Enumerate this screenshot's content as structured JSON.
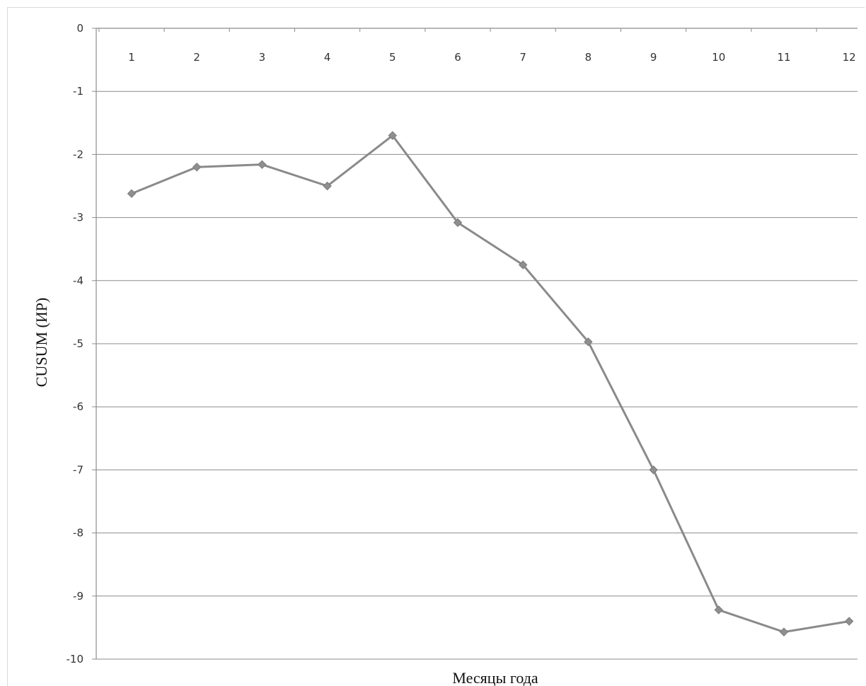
{
  "chart_data": {
    "type": "line",
    "title": "",
    "xlabel": "Месяцы года",
    "ylabel": "CUSUM (ИР)",
    "x": [
      1,
      2,
      3,
      4,
      5,
      6,
      7,
      8,
      9,
      10,
      11,
      12
    ],
    "series": [
      {
        "values": [
          -2.62,
          -2.2,
          -2.16,
          -2.5,
          -1.7,
          -3.08,
          -3.75,
          -4.97,
          -7.0,
          -9.22,
          -9.57,
          -9.4
        ]
      }
    ],
    "ylim": [
      -10,
      0
    ],
    "y_ticks": [
      0,
      -1,
      -2,
      -3,
      -4,
      -5,
      -6,
      -7,
      -8,
      -9,
      -10
    ],
    "x_axis_position": "top",
    "grid": true,
    "legend": "none",
    "colors": {
      "series": "#8a8a8a",
      "grid": "#8c8c8c"
    }
  }
}
